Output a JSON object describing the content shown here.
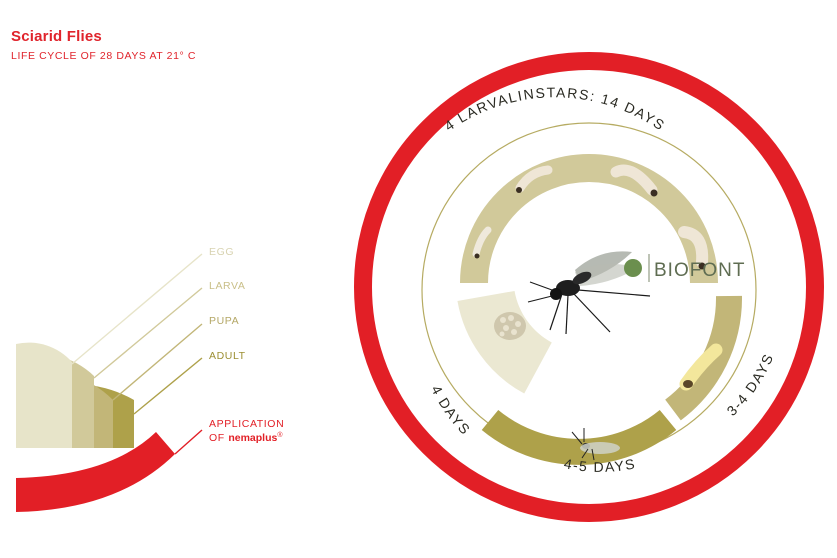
{
  "header": {
    "title": "Sciarid Flies",
    "subtitle": "LIFE CYCLE OF 28 DAYS AT 21° C"
  },
  "legend": {
    "egg": "EGG",
    "larva": "LARVA",
    "pupa": "PUPA",
    "adult": "ADULT",
    "application_line1": "APPLICATION",
    "application_of": "OF ",
    "application_product": "nemaplus",
    "application_mark": "®"
  },
  "ring_labels": {
    "larval": "4 LARVALINSTARS: 14 DAYS",
    "pupa": "3-4 DAYS",
    "adult": "4-5 DAYS",
    "egg": "4 DAYS"
  },
  "logo": {
    "text": "BIOFONT"
  },
  "colors": {
    "accent_red": "#e21f26",
    "egg": "#e7e4c9",
    "larva": "#d1c99a",
    "pupa": "#c2b678",
    "adult": "#aea14a",
    "text_dark": "#2a2a22"
  },
  "icons": [
    "egg-cluster-icon",
    "larva-icon",
    "pupa-icon",
    "adult-fly-icon",
    "biofont-leaf-icon"
  ]
}
